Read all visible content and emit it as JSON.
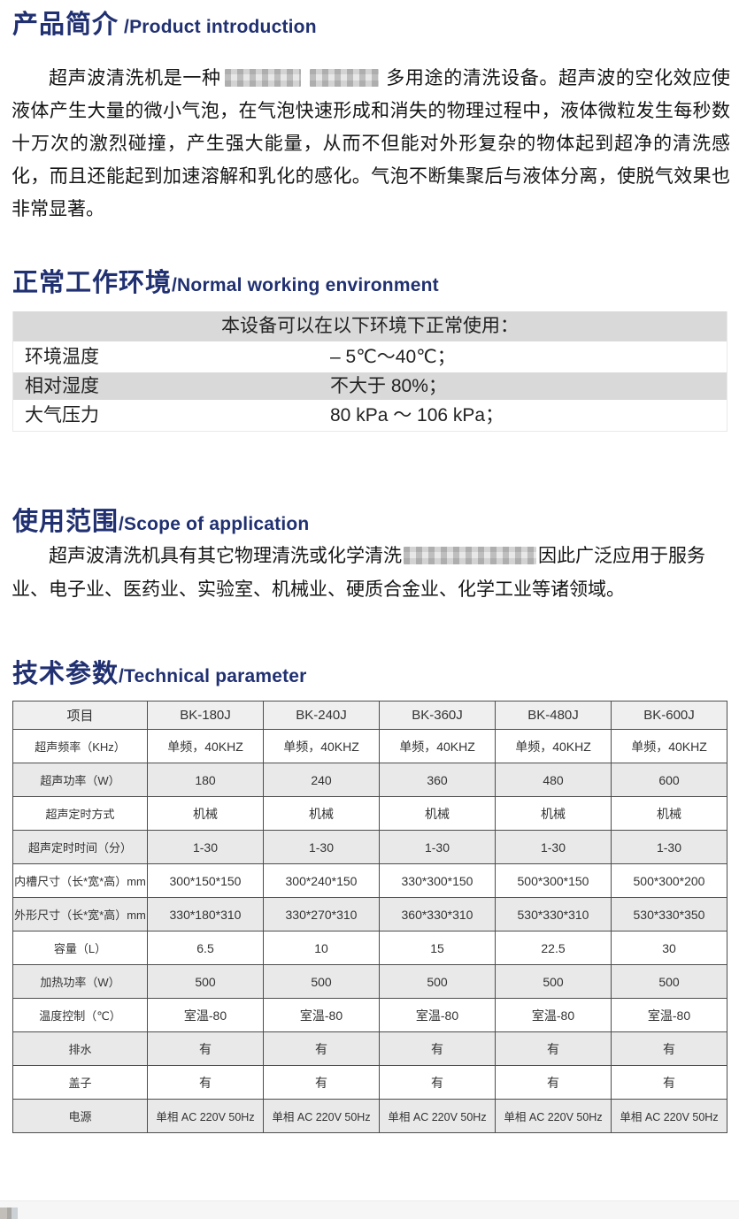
{
  "colors": {
    "heading_navy": "#203071",
    "table_gray": "#d9d9d9",
    "tech_row_gray": "#e9e9e9",
    "tech_border": "#4d4d4d",
    "footer_band": "#f6f6f6"
  },
  "sections": {
    "intro": {
      "heading_zh": "产品简介",
      "heading_en": " /Product introduction",
      "para_before_blur": "超声波清洗机是一种",
      "para_after_blur": "多用途的清洗设备。超声波的空化效应使液体产生大量的微小气泡，在气泡快速形成和消失的物理过程中，液体微粒发生每秒数十万次的激烈碰撞，产生强大能量，从而不但能对外形复杂的物体起到超净的清洗感化，而且还能起到加速溶解和乳化的感化。气泡不断集聚后与液体分离，使脱气效果也非常显著。"
    },
    "environment": {
      "heading_zh": "正常工作环境",
      "heading_en": "/Normal working environment",
      "table": {
        "caption": "本设备可以在以下环境下正常使用：",
        "rows": [
          {
            "label": "环境温度",
            "value": "– 5℃～40℃；"
          },
          {
            "label": "相对湿度",
            "value": "不大于 80%；"
          },
          {
            "label": "大气压力",
            "value": "80 kPa ～ 106 kPa；"
          }
        ]
      }
    },
    "scope": {
      "heading_zh": "使用范围",
      "heading_en": "/Scope of application",
      "para_before_blur": "超声波清洗机具有其它物理清洗或化学清洗",
      "para_after_blur": "因此广泛应用于服务业、电子业、医药业、实验室、机械业、硬质合金业、化学工业等诸领域。"
    },
    "tech": {
      "heading_zh": "技术参数",
      "heading_en": "/Technical parameter",
      "table": {
        "columns": [
          "项目",
          "BK-180J",
          "BK-240J",
          "BK-360J",
          "BK-480J",
          "BK-600J"
        ],
        "rows": [
          {
            "label": "超声频率（KHz）",
            "values": [
              "单频，40KHZ",
              "单频，40KHZ",
              "单频，40KHZ",
              "单频，40KHZ",
              "单频，40KHZ"
            ]
          },
          {
            "label": "超声功率（W）",
            "values": [
              "180",
              "240",
              "360",
              "480",
              "600"
            ]
          },
          {
            "label": "超声定时方式",
            "values": [
              "机械",
              "机械",
              "机械",
              "机械",
              "机械"
            ]
          },
          {
            "label": "超声定时时间（分）",
            "values": [
              "1-30",
              "1-30",
              "1-30",
              "1-30",
              "1-30"
            ]
          },
          {
            "label": "内槽尺寸（长*宽*高）mm",
            "values": [
              "300*150*150",
              "300*240*150",
              "330*300*150",
              "500*300*150",
              "500*300*200"
            ]
          },
          {
            "label": "外形尺寸（长*宽*高）mm",
            "values": [
              "330*180*310",
              "330*270*310",
              "360*330*310",
              "530*330*310",
              "530*330*350"
            ]
          },
          {
            "label": "容量（L）",
            "values": [
              "6.5",
              "10",
              "15",
              "22.5",
              "30"
            ]
          },
          {
            "label": "加热功率（W）",
            "values": [
              "500",
              "500",
              "500",
              "500",
              "500"
            ]
          },
          {
            "label": "温度控制（℃）",
            "values": [
              "室温-80",
              "室温-80",
              "室温-80",
              "室温-80",
              "室温-80"
            ]
          },
          {
            "label": "排水",
            "values": [
              "有",
              "有",
              "有",
              "有",
              "有"
            ]
          },
          {
            "label": "盖子",
            "values": [
              "有",
              "有",
              "有",
              "有",
              "有"
            ]
          },
          {
            "label": "电源",
            "values": [
              "单相 AC 220V 50Hz",
              "单相 AC 220V 50Hz",
              "单相 AC 220V 50Hz",
              "单相 AC 220V 50Hz",
              "单相 AC 220V 50Hz"
            ]
          }
        ]
      }
    }
  }
}
